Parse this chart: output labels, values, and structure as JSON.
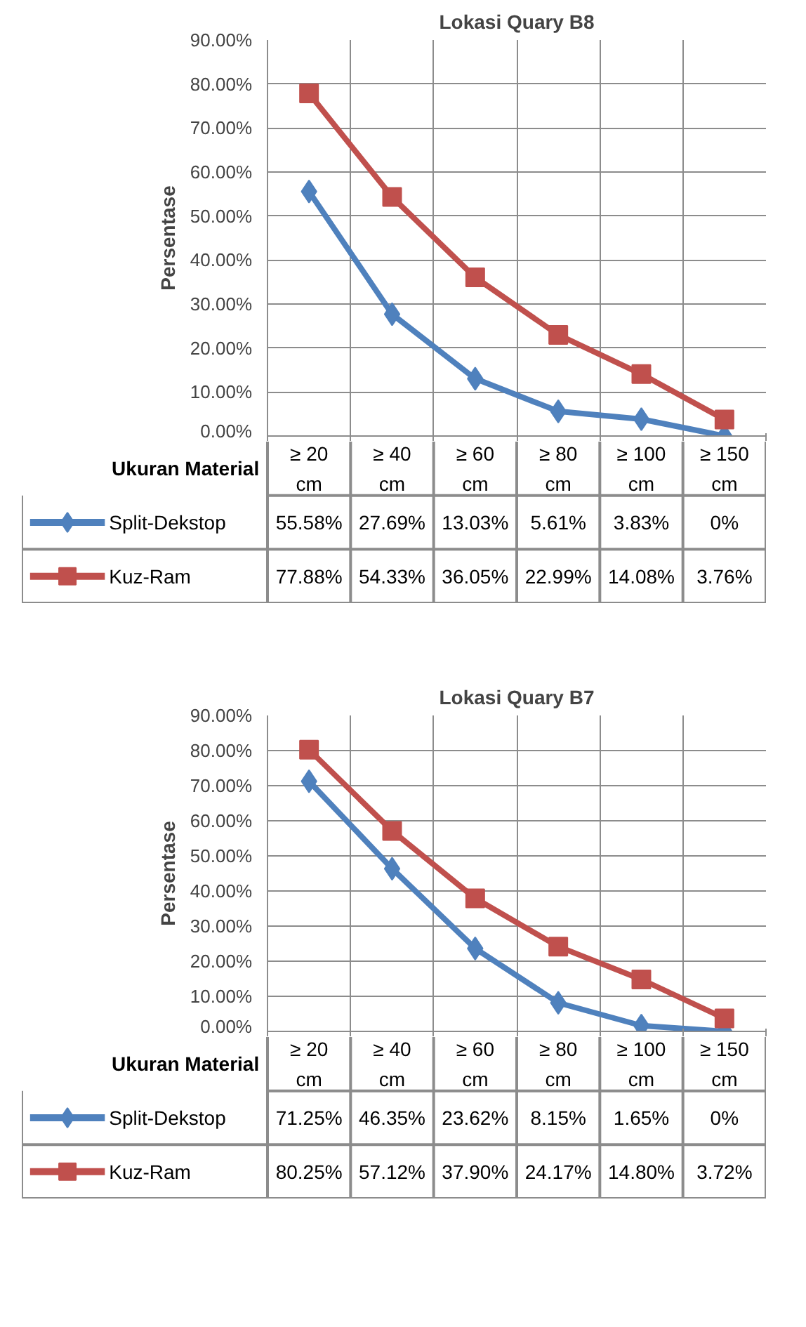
{
  "chart_data": [
    {
      "type": "line",
      "title": "Lokasi Quary B8",
      "ylabel": "Persentase",
      "xlabel": "Ukuran Material",
      "categories": [
        "≥ 20 cm",
        "≥ 40 cm",
        "≥ 60 cm",
        "≥ 80 cm",
        "≥ 100 cm",
        "≥ 150 cm"
      ],
      "ylim": [
        0,
        90
      ],
      "yticks": [
        {
          "value": 0,
          "label": "0.00%"
        },
        {
          "value": 10,
          "label": "10.00%"
        },
        {
          "value": 20,
          "label": "20.00%"
        },
        {
          "value": 30,
          "label": "30.00%"
        },
        {
          "value": 40,
          "label": "40.00%"
        },
        {
          "value": 50,
          "label": "50.00%"
        },
        {
          "value": 60,
          "label": "60.00%"
        },
        {
          "value": 70,
          "label": "70.00%"
        },
        {
          "value": 80,
          "label": "80.00%"
        },
        {
          "value": 90,
          "label": "90.00%"
        }
      ],
      "grid": true,
      "legend": "bottom",
      "series": [
        {
          "name": "Split-Dekstop",
          "color": "#4f81bd",
          "marker": "diamond",
          "values": [
            55.58,
            27.69,
            13.03,
            5.61,
            3.83,
            0
          ],
          "value_labels": [
            "55.58%",
            "27.69%",
            "13.03%",
            "5.61%",
            "3.83%",
            "0%"
          ]
        },
        {
          "name": "Kuz-Ram",
          "color": "#c0504d",
          "marker": "square",
          "values": [
            77.88,
            54.33,
            36.05,
            22.99,
            14.08,
            3.76
          ],
          "value_labels": [
            "77.88%",
            "54.33%",
            "36.05%",
            "22.99%",
            "14.08%",
            "3.76%"
          ]
        }
      ]
    },
    {
      "type": "line",
      "title": "Lokasi Quary B7",
      "ylabel": "Persentase",
      "xlabel": "Ukuran Material",
      "categories": [
        "≥ 20 cm",
        "≥ 40 cm",
        "≥ 60 cm",
        "≥ 80 cm",
        "≥ 100 cm",
        "≥ 150 cm"
      ],
      "ylim": [
        0,
        90
      ],
      "yticks": [
        {
          "value": 0,
          "label": "0.00%"
        },
        {
          "value": 10,
          "label": "10.00%"
        },
        {
          "value": 20,
          "label": "20.00%"
        },
        {
          "value": 30,
          "label": "30.00%"
        },
        {
          "value": 40,
          "label": "40.00%"
        },
        {
          "value": 50,
          "label": "50.00%"
        },
        {
          "value": 60,
          "label": "60.00%"
        },
        {
          "value": 70,
          "label": "70.00%"
        },
        {
          "value": 80,
          "label": "80.00%"
        },
        {
          "value": 90,
          "label": "90.00%"
        }
      ],
      "grid": true,
      "legend": "bottom",
      "series": [
        {
          "name": "Split-Dekstop",
          "color": "#4f81bd",
          "marker": "diamond",
          "values": [
            71.25,
            46.35,
            23.62,
            8.15,
            1.65,
            0
          ],
          "value_labels": [
            "71.25%",
            "46.35%",
            "23.62%",
            "8.15%",
            "1.65%",
            "0%"
          ]
        },
        {
          "name": "Kuz-Ram",
          "color": "#c0504d",
          "marker": "square",
          "values": [
            80.25,
            57.12,
            37.9,
            24.17,
            14.8,
            3.72
          ],
          "value_labels": [
            "80.25%",
            "57.12%",
            "37.90%",
            "24.17%",
            "14.80%",
            "3.72%"
          ]
        }
      ]
    }
  ]
}
